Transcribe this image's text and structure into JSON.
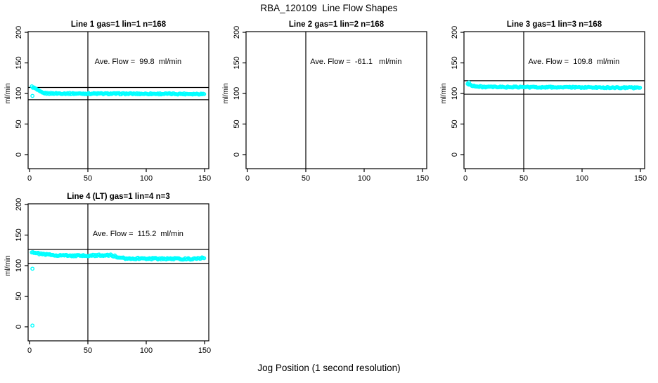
{
  "page": {
    "title": "RBA_120109  Line Flow Shapes",
    "xlabel": "Jog Position (1 second resolution)",
    "background": "#ffffff",
    "point_color": "#00ffff",
    "axis_color": "#000000"
  },
  "chart_data": [
    {
      "type": "scatter",
      "title": "Line 1 gas=1 lin=1 n=168",
      "ylabel": "ml/min",
      "annotation": "Ave. Flow =  99.8  ml/min",
      "ave_flow_ml_min": 99.8,
      "n_points": 168,
      "x_ticks": [
        0,
        50,
        100,
        150
      ],
      "y_ticks": [
        0,
        50,
        100,
        150,
        200
      ],
      "xlim": [
        -2,
        154
      ],
      "ylim": [
        -24,
        202
      ],
      "vline_x": 50,
      "ref_lines": [
        109.8,
        89.8
      ],
      "profile": [
        [
          2,
          111
        ],
        [
          5,
          108
        ],
        [
          8,
          104
        ],
        [
          11,
          101
        ],
        [
          15,
          100.2
        ],
        [
          40,
          99.8
        ],
        [
          150,
          99.2
        ]
      ],
      "outliers": [
        [
          2.5,
          96
        ]
      ],
      "jitter": 1.0
    },
    {
      "type": "scatter",
      "title": "Line 2 gas=1 lin=2 n=168",
      "ylabel": "ml/min",
      "annotation": "Ave. Flow =  -61.1   ml/min",
      "ave_flow_ml_min": -61.1,
      "n_points": 168,
      "x_ticks": [
        0,
        50,
        100,
        150
      ],
      "y_ticks": [
        0,
        50,
        100,
        150,
        200
      ],
      "xlim": [
        -2,
        154
      ],
      "ylim": [
        -24,
        202
      ],
      "vline_x": 50,
      "ref_lines": [],
      "profile": [],
      "outliers": [],
      "jitter": 0
    },
    {
      "type": "scatter",
      "title": "Line 3 gas=1 lin=3 n=168",
      "ylabel": "ml/min",
      "annotation": "Ave. Flow =  109.8  ml/min",
      "ave_flow_ml_min": 109.8,
      "n_points": 168,
      "x_ticks": [
        0,
        50,
        100,
        150
      ],
      "y_ticks": [
        0,
        50,
        100,
        150,
        200
      ],
      "xlim": [
        -2,
        154
      ],
      "ylim": [
        -24,
        202
      ],
      "vline_x": 50,
      "ref_lines": [
        120.8,
        98.8
      ],
      "profile": [
        [
          2,
          115.5
        ],
        [
          6,
          113
        ],
        [
          10,
          111.2
        ],
        [
          20,
          110.5
        ],
        [
          80,
          110.2
        ],
        [
          150,
          109.3
        ]
      ],
      "outliers": [
        [
          3,
          118
        ]
      ],
      "jitter": 1.0
    },
    {
      "type": "scatter",
      "title": "Line 4 (LT) gas=1 lin=4 n=3",
      "ylabel": "ml/min",
      "annotation": "Ave. Flow =  115.2  ml/min",
      "ave_flow_ml_min": 115.2,
      "n_points": 3,
      "x_ticks": [
        0,
        50,
        100,
        150
      ],
      "y_ticks": [
        0,
        50,
        100,
        150,
        200
      ],
      "xlim": [
        -2,
        154
      ],
      "ylim": [
        -24,
        202
      ],
      "vline_x": 50,
      "ref_lines": [
        126.7,
        103.7
      ],
      "profile": [
        [
          2,
          122.5
        ],
        [
          7,
          120
        ],
        [
          13,
          118.3
        ],
        [
          22,
          117.2
        ],
        [
          35,
          116.3
        ],
        [
          50,
          116
        ],
        [
          57,
          116.9
        ],
        [
          70,
          117
        ],
        [
          74,
          115
        ],
        [
          76,
          112.3
        ],
        [
          90,
          111.8
        ],
        [
          120,
          111.3
        ],
        [
          140,
          110.9
        ],
        [
          144,
          111.3
        ],
        [
          147,
          112.6
        ],
        [
          150,
          113.2
        ]
      ],
      "outliers": [
        [
          2.5,
          95
        ],
        [
          2.5,
          2
        ]
      ],
      "jitter": 1.2
    }
  ]
}
